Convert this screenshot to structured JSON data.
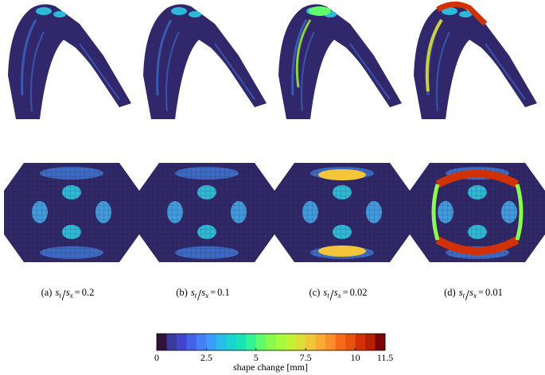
{
  "panels": [
    {
      "tag": "(a)",
      "num": "s",
      "num_sub": "t",
      "den": "s",
      "den_sub": "x",
      "rel": "=",
      "value": 0.2
    },
    {
      "tag": "(b)",
      "num": "s",
      "num_sub": "t",
      "den": "s",
      "den_sub": "x",
      "rel": "=",
      "value": 0.1
    },
    {
      "tag": "(c)",
      "num": "s",
      "num_sub": "t",
      "den": "s",
      "den_sub": "x",
      "rel": "=",
      "value": 0.02
    },
    {
      "tag": "(d)",
      "num": "s",
      "num_sub": "t",
      "den": "s",
      "den_sub": "x",
      "rel": "=",
      "value": 0.01
    }
  ],
  "colorbar": {
    "label": "shape change [mm]",
    "lim": [
      0,
      11.5
    ],
    "ticks": [
      0,
      2.5,
      5,
      7.5,
      10,
      11.5
    ],
    "colors": [
      "#30123b",
      "#3a3a9a",
      "#4145c9",
      "#4662e6",
      "#4680f6",
      "#3e9bfe",
      "#28bceb",
      "#1ad4d0",
      "#1ae4b6",
      "#35f394",
      "#61fc6c",
      "#8afa4e",
      "#a4fc3c",
      "#c1f334",
      "#dddd37",
      "#f3c63a",
      "#fbab33",
      "#fc8e2b",
      "#f66b19",
      "#e8510e",
      "#d23105",
      "#b51f02",
      "#7a0403"
    ]
  }
}
